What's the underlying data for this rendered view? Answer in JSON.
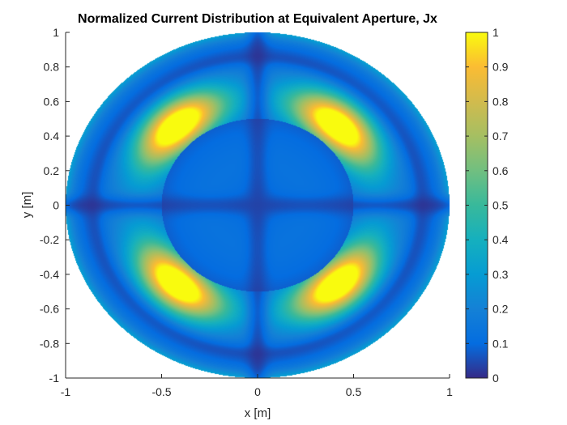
{
  "chart_data": {
    "type": "heatmap",
    "title": "Normalized Current Distribution at Equivalent Aperture, Jx",
    "xlabel": "x [m]",
    "ylabel": "y [m]",
    "xlim": [
      -1,
      1
    ],
    "ylim": [
      -1,
      1
    ],
    "x_ticks": [
      "-1",
      "-0.5",
      "0",
      "0.5",
      "1"
    ],
    "y_ticks": [
      "1",
      "0.8",
      "0.6",
      "0.4",
      "0.2",
      "0",
      "-0.2",
      "-0.4",
      "-0.6",
      "-0.8",
      "-1"
    ],
    "x_tick_values": [
      -1,
      -0.5,
      0,
      0.5,
      1
    ],
    "y_tick_values": [
      1,
      0.8,
      0.6,
      0.4,
      0.2,
      0,
      -0.2,
      -0.4,
      -0.6,
      -0.8,
      -1
    ],
    "colorbar": {
      "colormap": "parula",
      "range": [
        0,
        1
      ],
      "ticks": [
        "1",
        "0.9",
        "0.8",
        "0.7",
        "0.6",
        "0.5",
        "0.4",
        "0.3",
        "0.2",
        "0.1",
        "0"
      ],
      "tick_values": [
        1,
        0.9,
        0.8,
        0.7,
        0.6,
        0.5,
        0.4,
        0.3,
        0.2,
        0.1,
        0
      ]
    },
    "aperture": {
      "outer_radius": 1.0,
      "inner_radius": 0.5,
      "inner_level": 0.1,
      "outer_level": 0.1,
      "null_lines": [
        "x = 0",
        "y = 0"
      ],
      "peak_value": 1.0,
      "peak_locations": [
        [
          0.42,
          0.45
        ],
        [
          -0.42,
          0.45
        ],
        [
          -0.42,
          -0.45
        ],
        [
          0.42,
          -0.45
        ]
      ]
    }
  }
}
